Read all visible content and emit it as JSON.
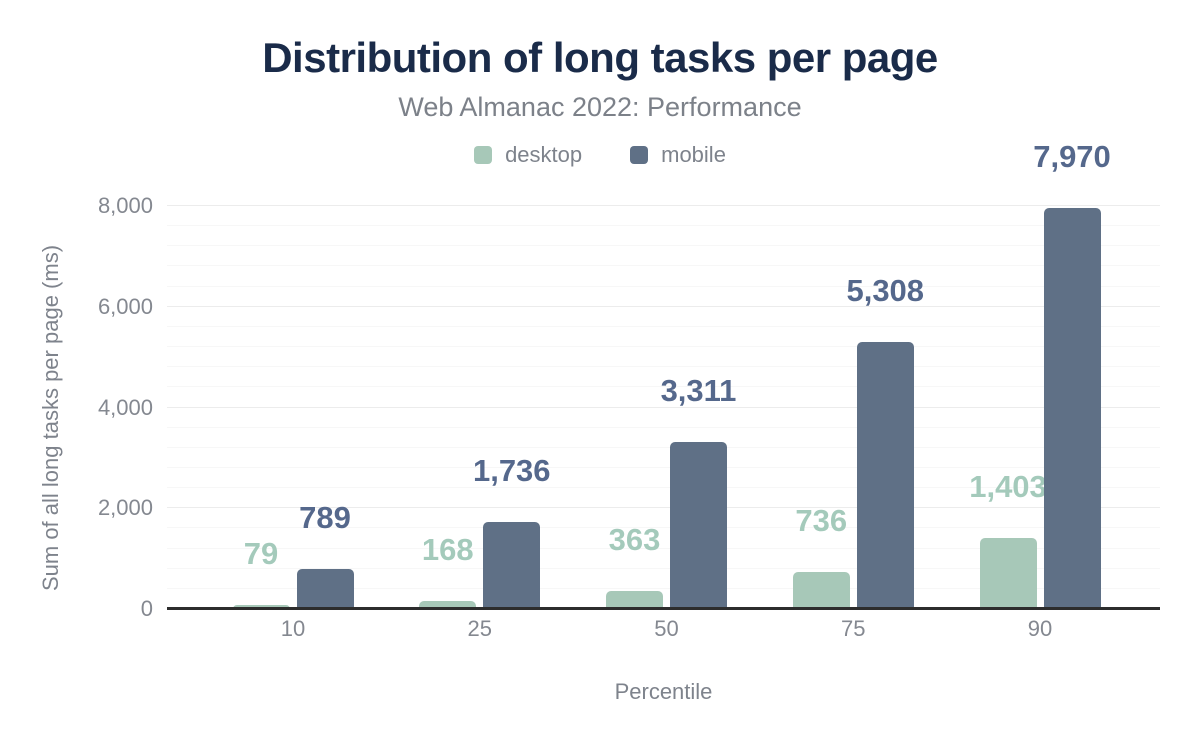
{
  "chart_data": {
    "type": "bar",
    "title": "Distribution of long tasks per page",
    "subtitle": "Web Almanac 2022: Performance",
    "xlabel": "Percentile",
    "ylabel": "Sum of all long tasks per page (ms)",
    "categories": [
      "10",
      "25",
      "50",
      "75",
      "90"
    ],
    "series": [
      {
        "name": "desktop",
        "values": [
          79,
          168,
          363,
          736,
          1403
        ],
        "labels": [
          "79",
          "168",
          "363",
          "736",
          "1,403"
        ]
      },
      {
        "name": "mobile",
        "values": [
          789,
          1736,
          3311,
          5308,
          7970
        ],
        "labels": [
          "789",
          "1,736",
          "3,311",
          "5,308",
          "7,970"
        ]
      }
    ],
    "ylim": [
      0,
      8000
    ],
    "ytick_step": 2000,
    "yminor_step": 400,
    "ytick_labels": [
      "0",
      "2,000",
      "4,000",
      "6,000",
      "8,000"
    ],
    "grid": true,
    "legend_position": "top-center",
    "data_labels": true
  },
  "colors": {
    "title": "#1a2b49",
    "subtitle": "#7c8189",
    "legend_text": "#7e838c",
    "axis_text": "#848890",
    "axis_title_text": "#7e838c",
    "axis_line": "#2d2d2d",
    "grid_major": "#ececec",
    "grid_minor": "#f7f7f7",
    "desktop_bar": "#a7c8b8",
    "desktop_label": "#a4cabb",
    "mobile_bar": "#5f7086",
    "mobile_label": "#55688c",
    "background": "#ffffff"
  }
}
